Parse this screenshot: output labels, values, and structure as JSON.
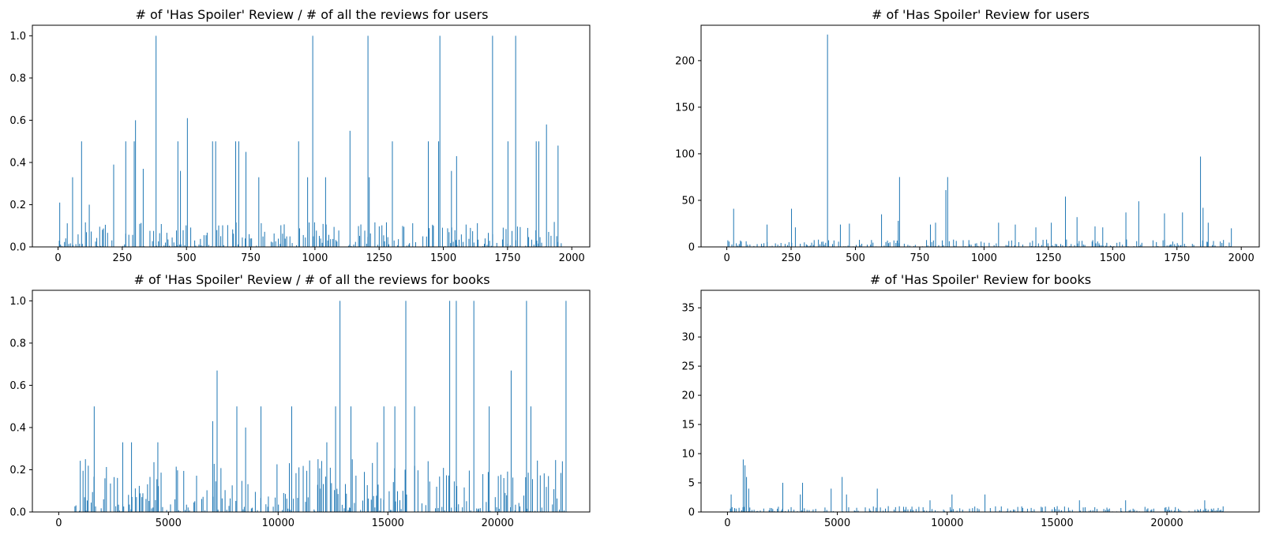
{
  "chart_data": [
    {
      "type": "bar",
      "title": "# of 'Has Spoiler' Review / # of all the reviews for users",
      "xlabel": "",
      "ylabel": "",
      "xlim": [
        -100,
        2070
      ],
      "ylim": [
        0,
        1.05
      ],
      "xticks": [
        0,
        250,
        500,
        750,
        1000,
        1250,
        1500,
        1750,
        2000
      ],
      "yticks": [
        0.0,
        0.2,
        0.4,
        0.6,
        0.8,
        1.0
      ],
      "ytick_labels": [
        "0.0",
        "0.2",
        "0.4",
        "0.6",
        "0.8",
        "1.0"
      ],
      "grid": false,
      "color": "#1f77b4",
      "x_range": [
        0,
        1960
      ],
      "peaks": [
        {
          "x": 5,
          "y": 0.21
        },
        {
          "x": 55,
          "y": 0.33
        },
        {
          "x": 90,
          "y": 0.5
        },
        {
          "x": 120,
          "y": 0.2
        },
        {
          "x": 215,
          "y": 0.39
        },
        {
          "x": 262,
          "y": 0.5
        },
        {
          "x": 295,
          "y": 0.5
        },
        {
          "x": 300,
          "y": 0.6
        },
        {
          "x": 330,
          "y": 0.37
        },
        {
          "x": 380,
          "y": 1.0
        },
        {
          "x": 465,
          "y": 0.5
        },
        {
          "x": 475,
          "y": 0.36
        },
        {
          "x": 502,
          "y": 0.61
        },
        {
          "x": 600,
          "y": 0.5
        },
        {
          "x": 612,
          "y": 0.5
        },
        {
          "x": 690,
          "y": 0.5
        },
        {
          "x": 702,
          "y": 0.5
        },
        {
          "x": 730,
          "y": 0.45
        },
        {
          "x": 780,
          "y": 0.33
        },
        {
          "x": 935,
          "y": 0.5
        },
        {
          "x": 970,
          "y": 0.33
        },
        {
          "x": 990,
          "y": 1.0
        },
        {
          "x": 1040,
          "y": 0.33
        },
        {
          "x": 1135,
          "y": 0.55
        },
        {
          "x": 1205,
          "y": 1.0
        },
        {
          "x": 1210,
          "y": 0.33
        },
        {
          "x": 1300,
          "y": 0.5
        },
        {
          "x": 1440,
          "y": 0.5
        },
        {
          "x": 1480,
          "y": 0.5
        },
        {
          "x": 1485,
          "y": 1.0
        },
        {
          "x": 1530,
          "y": 0.36
        },
        {
          "x": 1550,
          "y": 0.43
        },
        {
          "x": 1690,
          "y": 1.0
        },
        {
          "x": 1750,
          "y": 0.5
        },
        {
          "x": 1780,
          "y": 1.0
        },
        {
          "x": 1860,
          "y": 0.5
        },
        {
          "x": 1870,
          "y": 0.5
        },
        {
          "x": 1900,
          "y": 0.58
        },
        {
          "x": 1945,
          "y": 0.48
        }
      ],
      "baseline_max": 0.12
    },
    {
      "type": "bar",
      "title": "# of 'Has Spoiler' Review for users",
      "xlabel": "",
      "ylabel": "",
      "xlim": [
        -100,
        2070
      ],
      "ylim": [
        0,
        238
      ],
      "xticks": [
        0,
        250,
        500,
        750,
        1000,
        1250,
        1500,
        1750,
        2000
      ],
      "yticks": [
        0,
        50,
        100,
        150,
        200
      ],
      "ytick_labels": [
        "0",
        "50",
        "100",
        "150",
        "200"
      ],
      "grid": false,
      "color": "#1f77b4",
      "x_range": [
        0,
        1960
      ],
      "peaks": [
        {
          "x": 25,
          "y": 41
        },
        {
          "x": 155,
          "y": 24
        },
        {
          "x": 250,
          "y": 41
        },
        {
          "x": 265,
          "y": 21
        },
        {
          "x": 390,
          "y": 228
        },
        {
          "x": 440,
          "y": 24
        },
        {
          "x": 475,
          "y": 25
        },
        {
          "x": 600,
          "y": 35
        },
        {
          "x": 665,
          "y": 28
        },
        {
          "x": 670,
          "y": 75
        },
        {
          "x": 790,
          "y": 24
        },
        {
          "x": 810,
          "y": 26
        },
        {
          "x": 850,
          "y": 61
        },
        {
          "x": 857,
          "y": 75
        },
        {
          "x": 1055,
          "y": 26
        },
        {
          "x": 1120,
          "y": 24
        },
        {
          "x": 1200,
          "y": 21
        },
        {
          "x": 1260,
          "y": 26
        },
        {
          "x": 1315,
          "y": 54
        },
        {
          "x": 1360,
          "y": 32
        },
        {
          "x": 1430,
          "y": 22
        },
        {
          "x": 1460,
          "y": 21
        },
        {
          "x": 1550,
          "y": 37
        },
        {
          "x": 1600,
          "y": 49
        },
        {
          "x": 1700,
          "y": 36
        },
        {
          "x": 1770,
          "y": 37
        },
        {
          "x": 1840,
          "y": 97
        },
        {
          "x": 1850,
          "y": 42
        },
        {
          "x": 1870,
          "y": 26
        },
        {
          "x": 1960,
          "y": 20
        }
      ],
      "baseline_max": 8
    },
    {
      "type": "bar",
      "title": "# of 'Has Spoiler' Review / # of all the reviews for books",
      "xlabel": "",
      "ylabel": "",
      "xlim": [
        -1200,
        24200
      ],
      "ylim": [
        0,
        1.05
      ],
      "xticks": [
        0,
        5000,
        10000,
        15000,
        20000
      ],
      "yticks": [
        0.0,
        0.2,
        0.4,
        0.6,
        0.8,
        1.0
      ],
      "ytick_labels": [
        "0.0",
        "0.2",
        "0.4",
        "0.6",
        "0.8",
        "1.0"
      ],
      "grid": false,
      "color": "#1f77b4",
      "x_range": [
        700,
        23100
      ],
      "peaks": [
        {
          "x": 1200,
          "y": 0.25
        },
        {
          "x": 1600,
          "y": 0.5
        },
        {
          "x": 2900,
          "y": 0.33
        },
        {
          "x": 3300,
          "y": 0.33
        },
        {
          "x": 4500,
          "y": 0.33
        },
        {
          "x": 7000,
          "y": 0.43
        },
        {
          "x": 7200,
          "y": 0.67
        },
        {
          "x": 8100,
          "y": 0.5
        },
        {
          "x": 8500,
          "y": 0.4
        },
        {
          "x": 9200,
          "y": 0.5
        },
        {
          "x": 10600,
          "y": 0.5
        },
        {
          "x": 11800,
          "y": 0.25
        },
        {
          "x": 12200,
          "y": 0.33
        },
        {
          "x": 12600,
          "y": 0.5
        },
        {
          "x": 12800,
          "y": 1.0
        },
        {
          "x": 13300,
          "y": 0.5
        },
        {
          "x": 14500,
          "y": 0.33
        },
        {
          "x": 14800,
          "y": 0.5
        },
        {
          "x": 15300,
          "y": 0.5
        },
        {
          "x": 15800,
          "y": 1.0
        },
        {
          "x": 16200,
          "y": 0.5
        },
        {
          "x": 17800,
          "y": 1.0
        },
        {
          "x": 18100,
          "y": 1.0
        },
        {
          "x": 18900,
          "y": 1.0
        },
        {
          "x": 19600,
          "y": 0.5
        },
        {
          "x": 20600,
          "y": 0.67
        },
        {
          "x": 21300,
          "y": 1.0
        },
        {
          "x": 21500,
          "y": 0.5
        },
        {
          "x": 22300,
          "y": 0.17
        },
        {
          "x": 23100,
          "y": 1.0
        }
      ],
      "baseline_max": 0.25
    },
    {
      "type": "bar",
      "title": "# of 'Has Spoiler' Review for books",
      "xlabel": "",
      "ylabel": "",
      "xlim": [
        -1200,
        24200
      ],
      "ylim": [
        0,
        38
      ],
      "xticks": [
        0,
        5000,
        10000,
        15000,
        20000
      ],
      "yticks": [
        0,
        5,
        10,
        15,
        20,
        25,
        30,
        35
      ],
      "ytick_labels": [
        "0",
        "5",
        "10",
        "15",
        "20",
        "25",
        "30",
        "35"
      ],
      "grid": false,
      "color": "#1f77b4",
      "x_range": [
        100,
        22600
      ],
      "peaks": [
        {
          "x": 150,
          "y": 3
        },
        {
          "x": 700,
          "y": 9
        },
        {
          "x": 780,
          "y": 8
        },
        {
          "x": 850,
          "y": 6
        },
        {
          "x": 950,
          "y": 4
        },
        {
          "x": 2500,
          "y": 5
        },
        {
          "x": 3300,
          "y": 3
        },
        {
          "x": 3400,
          "y": 5
        },
        {
          "x": 4700,
          "y": 4
        },
        {
          "x": 5200,
          "y": 6
        },
        {
          "x": 5400,
          "y": 3
        },
        {
          "x": 6800,
          "y": 4
        },
        {
          "x": 9200,
          "y": 2
        },
        {
          "x": 10200,
          "y": 3
        },
        {
          "x": 11700,
          "y": 3
        },
        {
          "x": 16000,
          "y": 2
        },
        {
          "x": 18100,
          "y": 2
        },
        {
          "x": 21700,
          "y": 2
        }
      ],
      "baseline_max": 1
    }
  ]
}
